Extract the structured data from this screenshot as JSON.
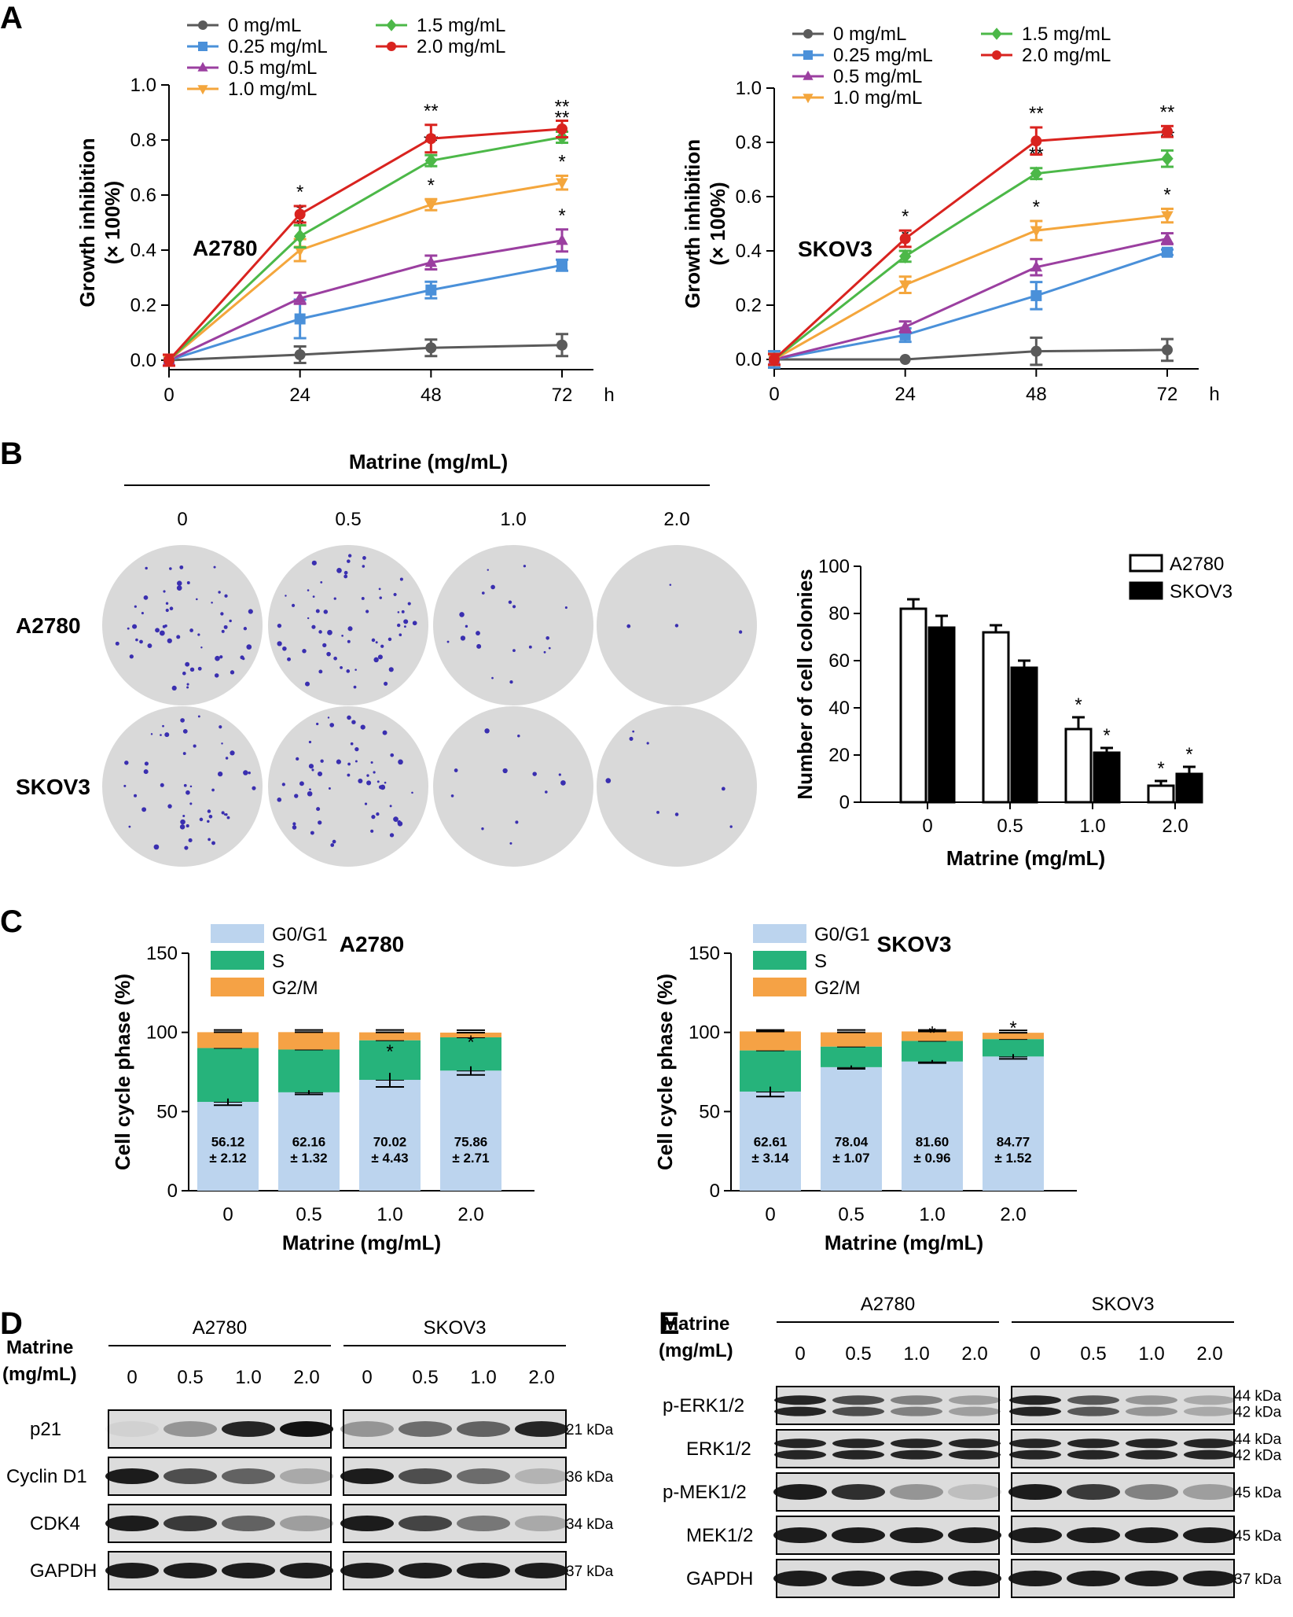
{
  "panels": {
    "A": "A",
    "B": "B",
    "C": "C",
    "D": "D",
    "E": "E"
  },
  "concentration_legend": [
    "0 mg/mL",
    "0.25 mg/mL",
    "0.5 mg/mL",
    "1.0 mg/mL",
    "1.5 mg/mL",
    "2.0 mg/mL"
  ],
  "colors": {
    "c0": "#5a5a5a",
    "c025": "#4a90d9",
    "c05": "#9b3fa0",
    "c1": "#f4a63c",
    "c15": "#4cb848",
    "c2": "#d9231f",
    "g0g1": "#bcd4ee",
    "s": "#26b37b",
    "g2m": "#f5a245"
  },
  "chart_data": [
    {
      "id": "A-left",
      "type": "line",
      "cell_line": "A2780",
      "x": [
        0,
        24,
        48,
        72
      ],
      "xlabel_unit": "h",
      "ylabel": "Growth inhibition\n(× 100%)",
      "ylim": [
        0,
        1.0
      ],
      "yticks": [
        "0.0",
        "0.2",
        "0.4",
        "0.6",
        "0.8",
        "1.0"
      ],
      "series": [
        {
          "name": "0 mg/mL",
          "values": [
            0.0,
            0.02,
            0.045,
            0.055
          ],
          "err": [
            0.02,
            0.03,
            0.03,
            0.04
          ],
          "marker": "circle",
          "sig": [
            "",
            "",
            "",
            ""
          ]
        },
        {
          "name": "0.25 mg/mL",
          "values": [
            0.0,
            0.15,
            0.255,
            0.345
          ],
          "err": [
            0.02,
            0.07,
            0.03,
            0.02
          ],
          "marker": "square",
          "sig": [
            "",
            "",
            "",
            ""
          ]
        },
        {
          "name": "0.5 mg/mL",
          "values": [
            0.0,
            0.225,
            0.355,
            0.435
          ],
          "err": [
            0.02,
            0.02,
            0.025,
            0.04
          ],
          "marker": "triangle",
          "sig": [
            "",
            "",
            "",
            "*"
          ]
        },
        {
          "name": "1.0 mg/mL",
          "values": [
            0.0,
            0.4,
            0.565,
            0.645
          ],
          "err": [
            0.02,
            0.04,
            0.02,
            0.025
          ],
          "marker": "tridown",
          "sig": [
            "",
            "*",
            "*",
            "*"
          ]
        },
        {
          "name": "1.5 mg/mL",
          "values": [
            0.0,
            0.45,
            0.725,
            0.81
          ],
          "err": [
            0.02,
            0.04,
            0.02,
            0.02
          ],
          "marker": "diamond",
          "sig": [
            "",
            "*",
            "**",
            "**"
          ]
        },
        {
          "name": "2.0 mg/mL",
          "values": [
            0.0,
            0.53,
            0.805,
            0.84
          ],
          "err": [
            0.02,
            0.03,
            0.05,
            0.03
          ],
          "marker": "circle",
          "sig": [
            "",
            "*",
            "**",
            "**"
          ]
        }
      ]
    },
    {
      "id": "A-right",
      "type": "line",
      "cell_line": "SKOV3",
      "x": [
        0,
        24,
        48,
        72
      ],
      "xlabel_unit": "h",
      "ylabel": "Growth inhibition\n(× 100%)",
      "ylim": [
        0,
        1.0
      ],
      "yticks": [
        "0.0",
        "0.2",
        "0.4",
        "0.6",
        "0.8",
        "1.0"
      ],
      "series": [
        {
          "name": "0 mg/mL",
          "values": [
            0.0,
            0.0,
            0.03,
            0.035
          ],
          "err": [
            0.03,
            0.0,
            0.05,
            0.04
          ],
          "marker": "circle",
          "sig": [
            "",
            "",
            "",
            ""
          ]
        },
        {
          "name": "0.25 mg/mL",
          "values": [
            0.0,
            0.09,
            0.235,
            0.395
          ],
          "err": [
            0.03,
            0.025,
            0.05,
            0.01
          ],
          "marker": "square",
          "sig": [
            "",
            "",
            "",
            ""
          ]
        },
        {
          "name": "0.5 mg/mL",
          "values": [
            0.0,
            0.12,
            0.34,
            0.445
          ],
          "err": [
            0.02,
            0.02,
            0.03,
            0.02
          ],
          "marker": "triangle",
          "sig": [
            "",
            "",
            "",
            ""
          ]
        },
        {
          "name": "1.0 mg/mL",
          "values": [
            0.0,
            0.275,
            0.475,
            0.53
          ],
          "err": [
            0.02,
            0.03,
            0.035,
            0.025
          ],
          "marker": "tridown",
          "sig": [
            "",
            "",
            "*",
            "*"
          ]
        },
        {
          "name": "1.5 mg/mL",
          "values": [
            0.0,
            0.38,
            0.685,
            0.74
          ],
          "err": [
            0.02,
            0.02,
            0.02,
            0.03
          ],
          "marker": "diamond",
          "sig": [
            "",
            "*",
            "**",
            "**"
          ]
        },
        {
          "name": "2.0 mg/mL",
          "values": [
            0.0,
            0.445,
            0.805,
            0.84
          ],
          "err": [
            0.02,
            0.03,
            0.05,
            0.02
          ],
          "marker": "circle",
          "sig": [
            "",
            "*",
            "**",
            "**"
          ]
        }
      ]
    },
    {
      "id": "B-bar",
      "type": "bar",
      "categories": [
        "0",
        "0.5",
        "1.0",
        "2.0"
      ],
      "series": [
        {
          "name": "A2780",
          "values": [
            82,
            72,
            31,
            7
          ],
          "err": [
            4,
            3,
            5,
            2
          ],
          "sig": [
            "",
            "",
            "*",
            "*"
          ]
        },
        {
          "name": "SKOV3",
          "values": [
            74,
            57,
            21,
            12
          ],
          "err": [
            5,
            3,
            2,
            3
          ],
          "sig": [
            "",
            "",
            "*",
            "*"
          ]
        }
      ],
      "ylabel": "Number of cell colonies",
      "xlabel": "Matrine (mg/mL)",
      "ylim": [
        0,
        100
      ],
      "yticks": [
        "0",
        "20",
        "40",
        "60",
        "80",
        "100"
      ]
    },
    {
      "id": "C-left",
      "type": "bar",
      "stacked": true,
      "title": "A2780",
      "categories": [
        "0",
        "0.5",
        "1.0",
        "2.0"
      ],
      "series": [
        {
          "name": "G0/G1",
          "values": [
            56.12,
            62.16,
            70.02,
            75.86
          ],
          "err": [
            2.12,
            1.32,
            4.43,
            2.71
          ]
        },
        {
          "name": "S",
          "values": [
            34,
            27,
            25,
            21
          ],
          "err": [
            0,
            0,
            0,
            0
          ]
        },
        {
          "name": "G2/M",
          "values": [
            10,
            11,
            5,
            3
          ],
          "err": [
            0,
            0,
            0,
            0
          ]
        }
      ],
      "labels": [
        [
          "56.12",
          "± 2.12"
        ],
        [
          "62.16",
          "± 1.32"
        ],
        [
          "70.02",
          "± 4.43"
        ],
        [
          "75.86",
          "± 2.71"
        ]
      ],
      "sig": [
        "",
        "",
        "*",
        "*"
      ],
      "ylabel": "Cell cycle phase (%)",
      "xlabel": "Matrine (mg/mL)",
      "ylim": [
        0,
        150
      ],
      "yticks": [
        "0",
        "50",
        "100",
        "150"
      ]
    },
    {
      "id": "C-right",
      "type": "bar",
      "stacked": true,
      "title": "SKOV3",
      "categories": [
        "0",
        "0.5",
        "1.0",
        "2.0"
      ],
      "series": [
        {
          "name": "G0/G1",
          "values": [
            62.61,
            78.04,
            81.6,
            84.77
          ],
          "err": [
            3.14,
            1.07,
            0.96,
            1.52
          ]
        },
        {
          "name": "S",
          "values": [
            26,
            13,
            13,
            11
          ],
          "err": [
            0,
            0,
            0,
            0
          ]
        },
        {
          "name": "G2/M",
          "values": [
            12,
            9,
            6,
            4
          ],
          "err": [
            0,
            0,
            0,
            0
          ]
        }
      ],
      "labels": [
        [
          "62.61",
          "± 3.14"
        ],
        [
          "78.04",
          "± 1.07"
        ],
        [
          "81.60",
          "± 0.96"
        ],
        [
          "84.77",
          "± 1.52"
        ]
      ],
      "sig": [
        "",
        "",
        "*",
        "*"
      ],
      "ylabel": "Cell cycle phase (%)",
      "xlabel": "Matrine (mg/mL)",
      "ylim": [
        0,
        150
      ],
      "yticks": [
        "0",
        "50",
        "100",
        "150"
      ]
    }
  ],
  "panelB": {
    "title": "Matrine (mg/mL)",
    "doses": [
      "0",
      "0.5",
      "1.0",
      "2.0"
    ],
    "rows": [
      "A2780",
      "SKOV3"
    ],
    "colonies": [
      [
        55,
        60,
        20,
        4
      ],
      [
        48,
        55,
        12,
        8
      ]
    ]
  },
  "westernD": {
    "matrine_label": "Matrine",
    "unit_label": "(mg/mL)",
    "groups": [
      "A2780",
      "SKOV3"
    ],
    "doses": [
      "0",
      "0.5",
      "1.0",
      "2.0"
    ],
    "rows": [
      {
        "name": "p21",
        "kda": [
          "21 kDa"
        ],
        "a": [
          0.05,
          0.35,
          0.9,
          1.0
        ],
        "b": [
          0.35,
          0.55,
          0.6,
          0.9
        ]
      },
      {
        "name": "Cyclin D1",
        "kda": [
          "36 kDa"
        ],
        "a": [
          0.95,
          0.7,
          0.6,
          0.25
        ],
        "b": [
          0.95,
          0.7,
          0.55,
          0.2
        ]
      },
      {
        "name": "CDK4",
        "kda": [
          "34 kDa"
        ],
        "a": [
          0.95,
          0.8,
          0.6,
          0.3
        ],
        "b": [
          0.95,
          0.75,
          0.5,
          0.25
        ]
      },
      {
        "name": "GAPDH",
        "kda": [
          "37 kDa"
        ],
        "a": [
          0.95,
          0.95,
          0.95,
          0.95
        ],
        "b": [
          0.95,
          0.95,
          0.95,
          0.95
        ]
      }
    ]
  },
  "westernE": {
    "matrine_label": "Matrine",
    "unit_label": "(mg/mL)",
    "groups": [
      "A2780",
      "SKOV3"
    ],
    "doses": [
      "0",
      "0.5",
      "1.0",
      "2.0"
    ],
    "rows": [
      {
        "name": "p-ERK1/2",
        "kda": [
          "44 kDa",
          "42 kDa"
        ],
        "double": true,
        "a": [
          0.9,
          0.7,
          0.45,
          0.3
        ],
        "b": [
          0.9,
          0.65,
          0.35,
          0.25
        ]
      },
      {
        "name": "ERK1/2",
        "kda": [
          "44 kDa",
          "42 kDa"
        ],
        "double": true,
        "a": [
          0.9,
          0.9,
          0.9,
          0.9
        ],
        "b": [
          0.9,
          0.9,
          0.9,
          0.9
        ]
      },
      {
        "name": "p-MEK1/2",
        "kda": [
          "45 kDa"
        ],
        "a": [
          0.95,
          0.85,
          0.35,
          0.15
        ],
        "b": [
          0.95,
          0.8,
          0.45,
          0.3
        ]
      },
      {
        "name": "MEK1/2",
        "kda": [
          "45 kDa"
        ],
        "a": [
          0.95,
          0.95,
          0.95,
          0.95
        ],
        "b": [
          0.95,
          0.95,
          0.95,
          0.95
        ]
      },
      {
        "name": "GAPDH",
        "kda": [
          "37 kDa"
        ],
        "a": [
          0.95,
          0.95,
          0.95,
          0.95
        ],
        "b": [
          0.95,
          0.95,
          0.95,
          0.95
        ]
      }
    ]
  }
}
